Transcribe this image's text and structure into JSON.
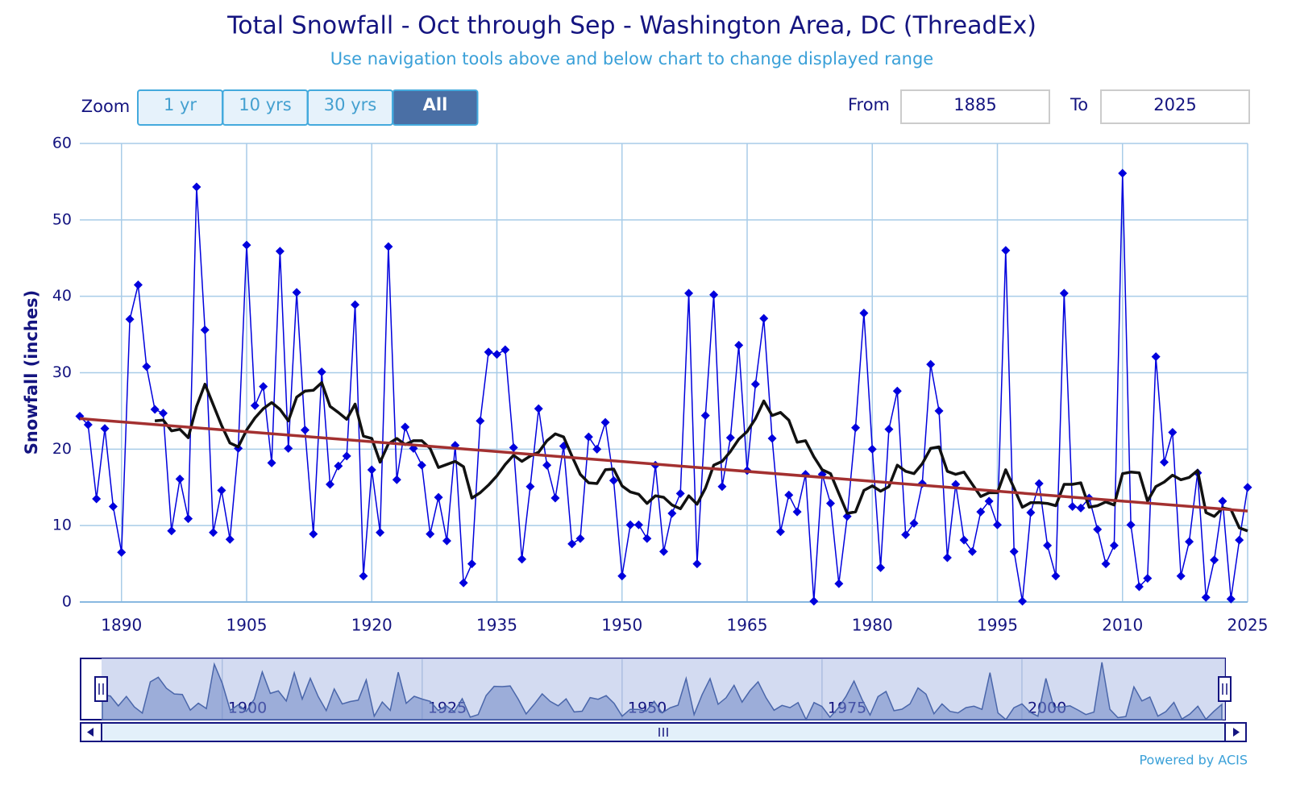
{
  "chart_data": {
    "type": "line",
    "title": "Total Snowfall - Oct through Sep - Washington Area, DC (ThreadEx)",
    "subtitle": "Use navigation tools above and below chart to change displayed range",
    "y_label": "Snowfall (inches)",
    "x": [
      1885,
      1886,
      1887,
      1888,
      1889,
      1890,
      1891,
      1892,
      1893,
      1894,
      1895,
      1896,
      1897,
      1898,
      1899,
      1900,
      1901,
      1902,
      1903,
      1904,
      1905,
      1906,
      1907,
      1908,
      1909,
      1910,
      1911,
      1912,
      1913,
      1914,
      1915,
      1916,
      1917,
      1918,
      1919,
      1920,
      1921,
      1922,
      1923,
      1924,
      1925,
      1926,
      1927,
      1928,
      1929,
      1930,
      1931,
      1932,
      1933,
      1934,
      1935,
      1936,
      1937,
      1938,
      1939,
      1940,
      1941,
      1942,
      1943,
      1944,
      1945,
      1946,
      1947,
      1948,
      1949,
      1950,
      1951,
      1952,
      1953,
      1954,
      1955,
      1956,
      1957,
      1958,
      1959,
      1960,
      1961,
      1962,
      1963,
      1964,
      1965,
      1966,
      1967,
      1968,
      1969,
      1970,
      1971,
      1972,
      1973,
      1974,
      1975,
      1976,
      1977,
      1978,
      1979,
      1980,
      1981,
      1982,
      1983,
      1984,
      1985,
      1986,
      1987,
      1988,
      1989,
      1990,
      1991,
      1992,
      1993,
      1994,
      1995,
      1996,
      1997,
      1998,
      1999,
      2000,
      2001,
      2002,
      2003,
      2004,
      2005,
      2006,
      2007,
      2008,
      2009,
      2010,
      2011,
      2012,
      2013,
      2014,
      2015,
      2016,
      2017,
      2018,
      2019,
      2020,
      2021,
      2022,
      2023,
      2024,
      2025
    ],
    "xlim": [
      1885,
      2025
    ],
    "xticks": [
      1890,
      1905,
      1920,
      1935,
      1950,
      1965,
      1980,
      1995,
      2010,
      2025
    ],
    "ylim": [
      0,
      60
    ],
    "yticks": [
      0,
      10,
      20,
      30,
      40,
      50,
      60
    ],
    "grid": true,
    "series": [
      {
        "color": "#0000dd",
        "marker": "diamond",
        "values": [
          24.3,
          23.2,
          13.5,
          22.7,
          12.5,
          6.5,
          37.0,
          41.5,
          30.8,
          25.2,
          24.7,
          9.3,
          16.1,
          10.9,
          54.3,
          35.6,
          9.1,
          14.6,
          8.2,
          20.1,
          46.7,
          25.7,
          28.2,
          18.2,
          45.9,
          20.1,
          40.5,
          22.5,
          8.9,
          30.1,
          15.4,
          17.8,
          19.1,
          38.9,
          3.4,
          17.3,
          9.1,
          46.5,
          16.0,
          22.9,
          20.1,
          17.9,
          8.9,
          13.7,
          8.0,
          20.5,
          2.5,
          5.0,
          23.7,
          32.7,
          32.4,
          33.0,
          20.2,
          5.6,
          15.1,
          25.3,
          17.9,
          13.6,
          20.4,
          7.6,
          8.3,
          21.6,
          20.0,
          23.5,
          15.9,
          3.4,
          10.1,
          10.1,
          8.3,
          17.9,
          6.6,
          11.6,
          14.2,
          40.4,
          5.0,
          24.4,
          40.2,
          15.1,
          21.5,
          33.6,
          17.2,
          28.5,
          37.1,
          21.4,
          9.2,
          14.0,
          11.8,
          16.7,
          0.1,
          16.7,
          12.9,
          2.4,
          11.2,
          22.8,
          37.8,
          20.0,
          4.5,
          22.6,
          27.6,
          8.8,
          10.3,
          15.5,
          31.1,
          25.0,
          5.8,
          15.4,
          8.1,
          6.6,
          11.8,
          13.2,
          10.1,
          46.0,
          6.6,
          0.1,
          11.7,
          15.5,
          7.4,
          3.4,
          40.4,
          12.5,
          12.3,
          13.6,
          9.5,
          5.0,
          7.4,
          56.1,
          10.1,
          2.0,
          3.1,
          32.1,
          18.3,
          22.2,
          3.4,
          7.9,
          16.9,
          0.6,
          5.5,
          13.2,
          0.4,
          8.1,
          15.0
        ]
      },
      {
        "color": "#111111",
        "values": [
          null,
          null,
          null,
          null,
          null,
          null,
          null,
          null,
          null,
          23.7,
          23.8,
          22.4,
          22.6,
          21.5,
          25.6,
          28.5,
          25.8,
          23.1,
          20.8,
          20.3,
          22.5,
          24.1,
          25.3,
          26.1,
          25.2,
          23.7,
          26.8,
          27.6,
          27.7,
          28.7,
          25.6,
          24.8,
          23.9,
          25.9,
          21.7,
          21.4,
          18.3,
          20.7,
          21.4,
          20.6,
          21.1,
          21.1,
          20.1,
          17.6,
          18.0,
          18.4,
          17.7,
          13.6,
          14.3,
          15.3,
          16.5,
          18.0,
          19.2,
          18.4,
          19.1,
          19.6,
          21.1,
          22.0,
          21.6,
          19.1,
          16.7,
          15.6,
          15.5,
          17.3,
          17.4,
          15.2,
          14.4,
          14.1,
          12.9,
          13.9,
          13.7,
          12.7,
          12.2,
          13.9,
          12.8,
          14.9,
          17.9,
          18.4,
          19.7,
          21.3,
          22.3,
          24.0,
          26.3,
          24.4,
          24.8,
          23.8,
          20.9,
          21.1,
          19.0,
          17.3,
          16.8,
          14.2,
          11.6,
          11.8,
          14.6,
          15.2,
          14.5,
          15.1,
          17.9,
          17.1,
          16.8,
          18.1,
          20.1,
          20.3,
          17.1,
          16.7,
          17.0,
          15.4,
          13.8,
          14.3,
          14.3,
          17.3,
          14.9,
          12.4,
          13.0,
          13.0,
          12.9,
          12.6,
          15.4,
          15.4,
          15.6,
          12.4,
          12.6,
          13.1,
          12.7,
          16.8,
          17.0,
          16.9,
          13.2,
          15.1,
          15.7,
          16.6,
          16.0,
          16.3,
          17.2,
          11.7,
          11.2,
          12.3,
          12.1,
          9.7,
          9.3
        ]
      },
      {
        "color": "#a33030",
        "x": [
          1885,
          2025
        ],
        "values": [
          24.0,
          11.9
        ]
      }
    ],
    "navigator": {
      "xticks": [
        1900,
        1925,
        1950,
        1975,
        2000
      ],
      "color": "#6f86c4"
    },
    "zoom": {
      "label": "Zoom",
      "buttons": [
        "1 yr",
        "10 yrs",
        "30 yrs",
        "All"
      ],
      "selected": 3
    },
    "range": {
      "from_label": "From",
      "from": "1885",
      "to_label": "To",
      "to": "2025"
    },
    "credit": "Powered by ACIS"
  }
}
